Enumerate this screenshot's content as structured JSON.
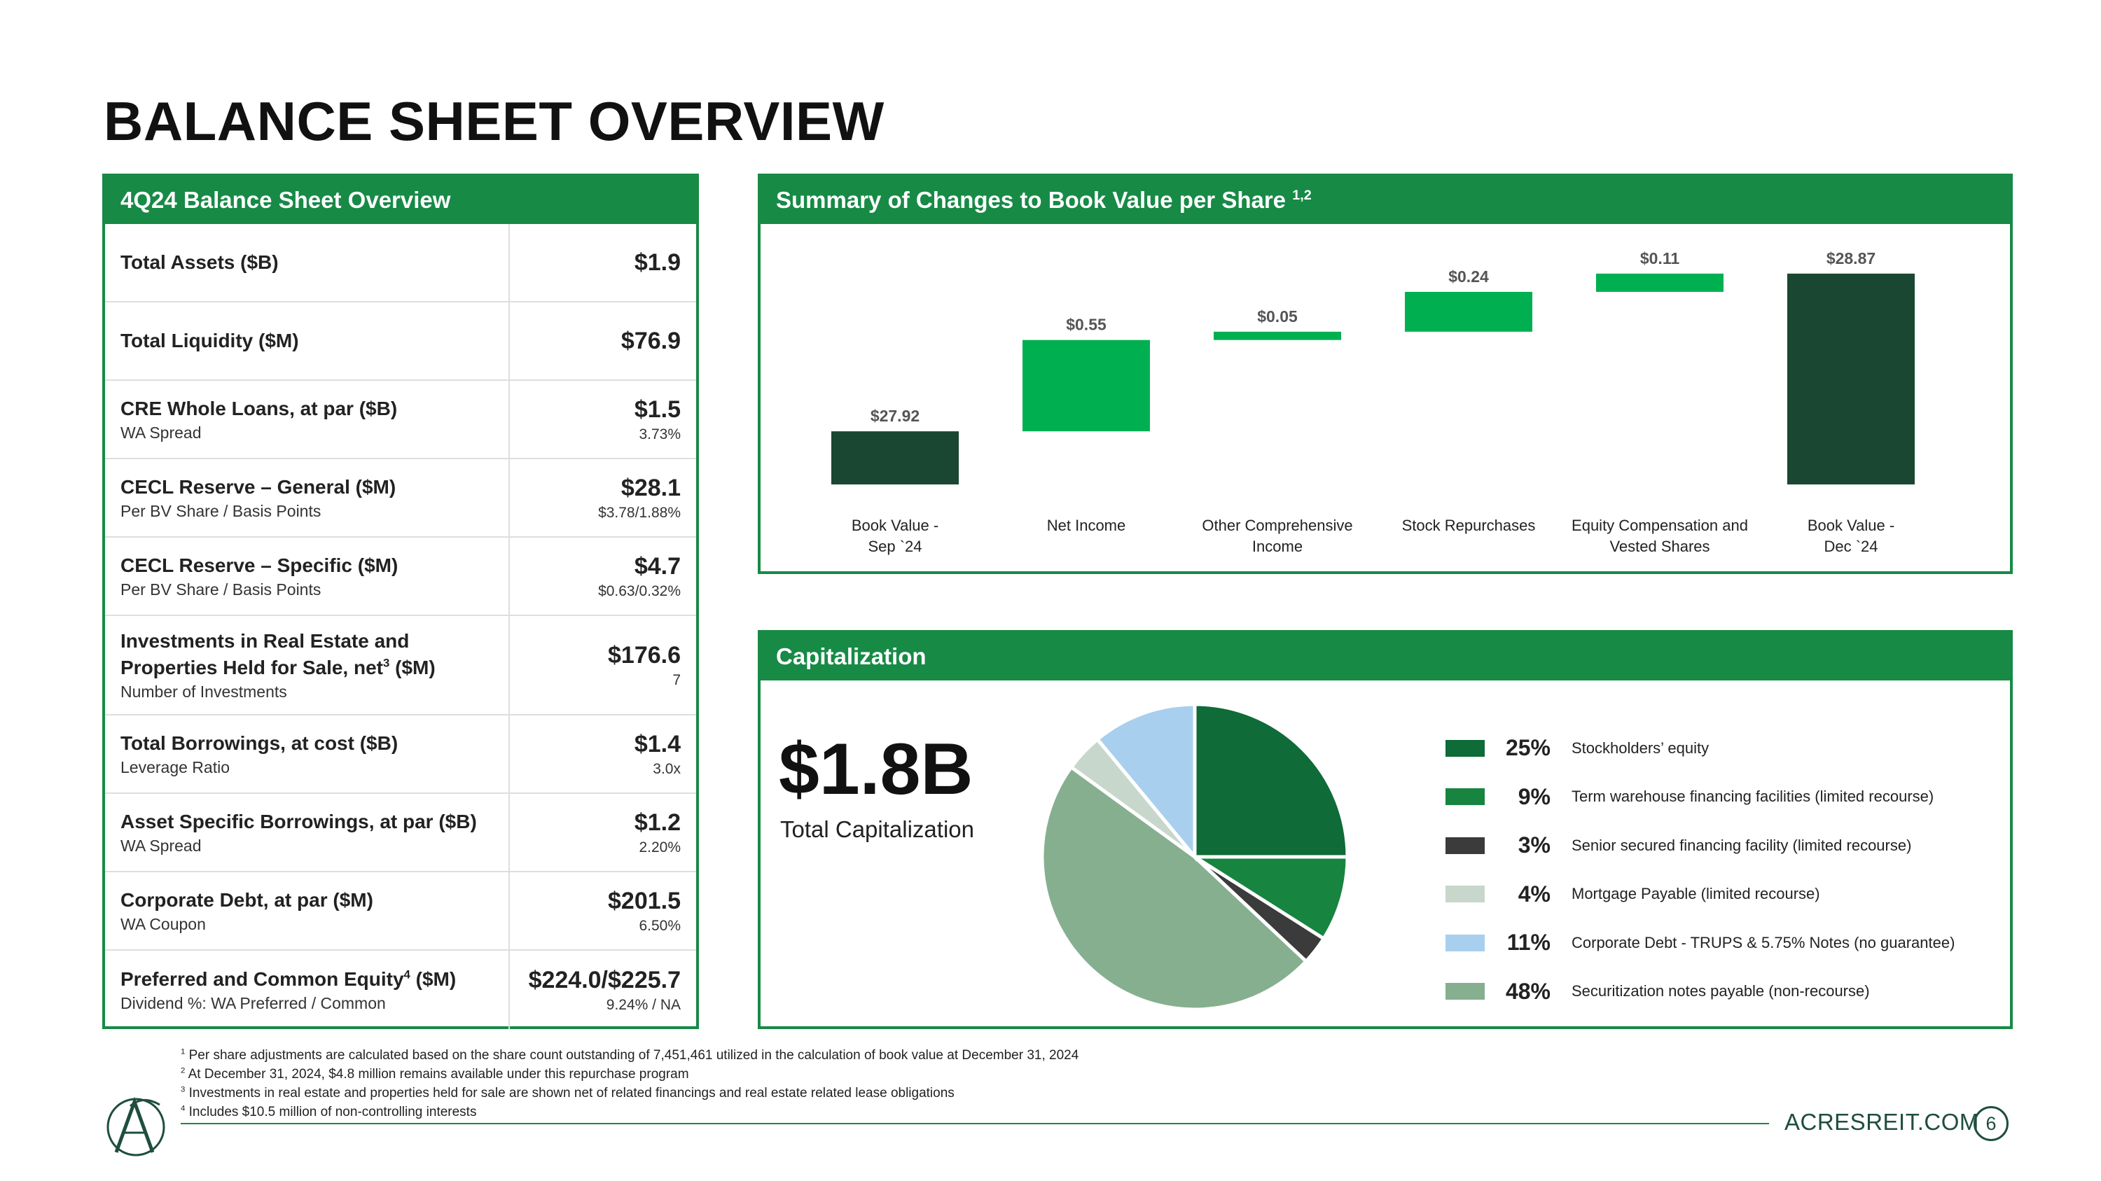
{
  "page": {
    "title": "BALANCE SHEET OVERVIEW",
    "website": "ACRESREIT.COM",
    "page_number": "6"
  },
  "balance_sheet": {
    "header": "4Q24 Balance Sheet Overview",
    "rows": [
      {
        "label": "Total Assets ($B)",
        "sub": "",
        "value": "$1.9",
        "value_sub": ""
      },
      {
        "label": "Total Liquidity ($M)",
        "sub": "",
        "value": "$76.9",
        "value_sub": ""
      },
      {
        "label": "CRE Whole Loans, at par ($B)",
        "sub": "WA Spread",
        "value": "$1.5",
        "value_sub": "3.73%"
      },
      {
        "label": "CECL Reserve – General ($M)",
        "sub": "Per BV Share / Basis Points",
        "value": "$28.1",
        "value_sub": "$3.78/1.88%"
      },
      {
        "label": "CECL Reserve – Specific ($M)",
        "sub": "Per BV Share / Basis Points",
        "value": "$4.7",
        "value_sub": "$0.63/0.32%"
      },
      {
        "label_1": "Investments in Real Estate and",
        "label_2": "Properties Held for Sale, net",
        "label_sup": "3",
        "label_3": " ($M)",
        "sub": "Number of Investments",
        "value": "$176.6",
        "value_sub": "7"
      },
      {
        "label": "Total Borrowings, at cost ($B)",
        "sub": "Leverage Ratio",
        "value": "$1.4",
        "value_sub": "3.0x"
      },
      {
        "label": "Asset Specific Borrowings, at par ($B)",
        "sub": "WA Spread",
        "value": "$1.2",
        "value_sub": "2.20%"
      },
      {
        "label": "Corporate Debt, at par ($M)",
        "sub": "WA Coupon",
        "value": "$201.5",
        "value_sub": "6.50%"
      },
      {
        "label_1": "Preferred and Common Equity",
        "label_sup": "4",
        "label_2": " ($M)",
        "sub": "Dividend %: WA Preferred / Common",
        "value": "$224.0/$225.7",
        "value_sub": "9.24% / NA"
      }
    ]
  },
  "book_value_panel": {
    "header": "Summary of Changes to Book Value per Share",
    "header_sup": "1,2"
  },
  "capitalization": {
    "header": "Capitalization",
    "total": "$1.8B",
    "total_label": "Total Capitalization"
  },
  "footnotes": [
    {
      "num": "1",
      "text": " Per share adjustments are calculated based on the share count outstanding of 7,451,461 utilized in the calculation of book value at December 31, 2024"
    },
    {
      "num": "2",
      "text": " At December 31, 2024, $4.8 million remains available under this repurchase program"
    },
    {
      "num": "3",
      "text": " Investments in real estate and properties held for sale are shown net of related financings and real estate related lease obligations"
    },
    {
      "num": "4",
      "text": " Includes $10.5 million of non-controlling interests"
    }
  ],
  "chart_data": [
    {
      "type": "bar",
      "subtype": "waterfall",
      "categories": [
        [
          "Book Value -",
          "Sep `24"
        ],
        [
          "Net Income"
        ],
        [
          "Other Comprehensive",
          "Income"
        ],
        [
          "Stock Repurchases"
        ],
        [
          "Equity Compensation and",
          "Vested Shares"
        ],
        [
          "Book Value -",
          "Dec `24"
        ]
      ],
      "values": [
        27.92,
        0.55,
        0.05,
        0.24,
        0.11,
        28.87
      ],
      "value_labels": [
        "$27.92",
        "$0.55",
        "$0.05",
        "$0.24",
        "$0.11",
        "$28.87"
      ],
      "kinds": [
        "total",
        "delta",
        "delta",
        "delta",
        "delta",
        "total"
      ],
      "colors": {
        "total": "#1a4731",
        "delta": "#00b050"
      }
    },
    {
      "type": "pie",
      "slices": [
        {
          "label": "Stockholders’ equity",
          "pct_label": "25%",
          "value": 25,
          "color": "#0f6b37"
        },
        {
          "label": "Term warehouse financing facilities (limited recourse)",
          "pct_label": "9%",
          "value": 9,
          "color": "#17843f"
        },
        {
          "label": "Senior secured financing facility (limited recourse)",
          "pct_label": "3%",
          "value": 3,
          "color": "#3b3b3b"
        },
        {
          "label": "Mortgage Payable (limited recourse)",
          "pct_label": "4%",
          "value": 4,
          "color": "#c8d7cb"
        },
        {
          "label": "Corporate Debt - TRUPS & 5.75% Notes (no guarantee)",
          "pct_label": "11%",
          "value": 11,
          "color": "#a9cfee"
        },
        {
          "label": "Securitization notes payable (non-recourse)",
          "pct_label": "48%",
          "value": 48,
          "color": "#86af90"
        }
      ],
      "slice_order": [
        0,
        1,
        2,
        5,
        3,
        4
      ]
    }
  ]
}
